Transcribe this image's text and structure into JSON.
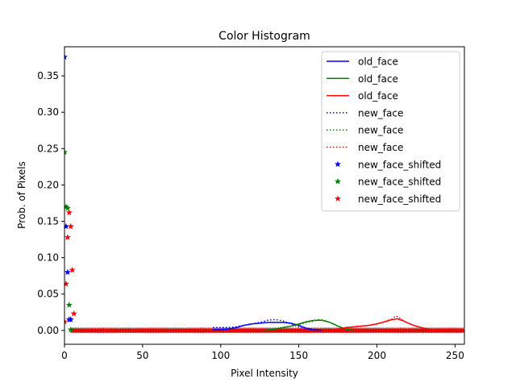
{
  "chart_data": {
    "type": "line",
    "title": "Color Histogram",
    "xlabel": "Pixel Intensity",
    "ylabel": "Prob. of Pixels",
    "xlim": [
      0,
      256
    ],
    "ylim": [
      -0.019,
      0.39
    ],
    "xticks": [
      "0",
      "50",
      "100",
      "150",
      "200",
      "250"
    ],
    "yticks": [
      "0.00",
      "0.05",
      "0.10",
      "0.15",
      "0.20",
      "0.25",
      "0.30",
      "0.35"
    ],
    "grid": false,
    "legend": "top-right",
    "colors": {
      "blue": "#0000ff",
      "green": "#008000",
      "red": "#ff0000"
    },
    "series": [
      {
        "name": "old_face",
        "style": "solid",
        "color": "blue",
        "points": [
          [
            95,
            0.001
          ],
          [
            100,
            0.001
          ],
          [
            105,
            0.002
          ],
          [
            110,
            0.004
          ],
          [
            115,
            0.007
          ],
          [
            120,
            0.009
          ],
          [
            125,
            0.01
          ],
          [
            130,
            0.011
          ],
          [
            135,
            0.011
          ],
          [
            140,
            0.011
          ],
          [
            145,
            0.01
          ],
          [
            150,
            0.007
          ],
          [
            155,
            0.003
          ],
          [
            160,
            0.001
          ],
          [
            165,
            0
          ]
        ]
      },
      {
        "name": "old_face",
        "style": "solid",
        "color": "green",
        "points": [
          [
            128,
            0
          ],
          [
            135,
            0.002
          ],
          [
            140,
            0.004
          ],
          [
            145,
            0.006
          ],
          [
            150,
            0.009
          ],
          [
            155,
            0.012
          ],
          [
            160,
            0.014
          ],
          [
            165,
            0.014
          ],
          [
            170,
            0.011
          ],
          [
            175,
            0.006
          ],
          [
            180,
            0.002
          ],
          [
            185,
            0
          ]
        ]
      },
      {
        "name": "old_face",
        "style": "solid",
        "color": "red",
        "points": [
          [
            170,
            0
          ],
          [
            175,
            0.002
          ],
          [
            180,
            0.004
          ],
          [
            185,
            0.005
          ],
          [
            190,
            0.006
          ],
          [
            195,
            0.007
          ],
          [
            200,
            0.009
          ],
          [
            205,
            0.012
          ],
          [
            210,
            0.015
          ],
          [
            213,
            0.016
          ],
          [
            216,
            0.014
          ],
          [
            220,
            0.01
          ],
          [
            225,
            0.006
          ],
          [
            230,
            0.003
          ],
          [
            235,
            0.001
          ],
          [
            240,
            0
          ]
        ]
      },
      {
        "name": "new_face",
        "style": "dotted",
        "color": "blue",
        "points": [
          [
            95,
            0.004
          ],
          [
            100,
            0.004
          ],
          [
            105,
            0.004
          ],
          [
            110,
            0.005
          ],
          [
            115,
            0.007
          ],
          [
            120,
            0.009
          ],
          [
            125,
            0.011
          ],
          [
            130,
            0.014
          ],
          [
            135,
            0.015
          ],
          [
            140,
            0.013
          ],
          [
            145,
            0.009
          ],
          [
            150,
            0.005
          ],
          [
            155,
            0.002
          ],
          [
            160,
            0
          ]
        ]
      },
      {
        "name": "new_face",
        "style": "dotted",
        "color": "green",
        "points": [
          [
            130,
            0
          ],
          [
            135,
            0.002
          ],
          [
            140,
            0.004
          ],
          [
            145,
            0.006
          ],
          [
            150,
            0.008
          ],
          [
            155,
            0.011
          ],
          [
            160,
            0.013
          ],
          [
            163,
            0.015
          ],
          [
            166,
            0.014
          ],
          [
            170,
            0.011
          ],
          [
            175,
            0.006
          ],
          [
            180,
            0.002
          ],
          [
            185,
            0
          ]
        ]
      },
      {
        "name": "new_face",
        "style": "dotted",
        "color": "red",
        "points": [
          [
            175,
            0
          ],
          [
            180,
            0.003
          ],
          [
            185,
            0.005
          ],
          [
            190,
            0.006
          ],
          [
            195,
            0.007
          ],
          [
            200,
            0.009
          ],
          [
            205,
            0.012
          ],
          [
            210,
            0.016
          ],
          [
            212,
            0.02
          ],
          [
            214,
            0.018
          ],
          [
            218,
            0.012
          ],
          [
            222,
            0.008
          ],
          [
            226,
            0.005
          ],
          [
            230,
            0.003
          ],
          [
            235,
            0.001
          ],
          [
            240,
            0
          ]
        ]
      },
      {
        "name": "new_face_shifted",
        "style": "marker",
        "color": "blue",
        "points": [
          [
            0,
            0.376
          ],
          [
            1,
            0.143
          ],
          [
            2,
            0.08
          ],
          [
            3,
            0.015
          ],
          [
            4,
            0.015
          ]
        ]
      },
      {
        "name": "new_face_shifted",
        "style": "marker",
        "color": "green",
        "points": [
          [
            0,
            0.245
          ],
          [
            1,
            0.17
          ],
          [
            2,
            0.168
          ],
          [
            3,
            0.035
          ],
          [
            4,
            0.001
          ]
        ]
      },
      {
        "name": "new_face_shifted",
        "style": "marker",
        "color": "red",
        "points": [
          [
            0,
            0.012
          ],
          [
            1,
            0.064
          ],
          [
            2,
            0.128
          ],
          [
            3,
            0.162
          ],
          [
            4,
            0.143
          ],
          [
            5,
            0.083
          ],
          [
            6,
            0.023
          ]
        ]
      }
    ],
    "zero_markers": {
      "from": 5,
      "to": 255,
      "value": 0.0
    }
  }
}
